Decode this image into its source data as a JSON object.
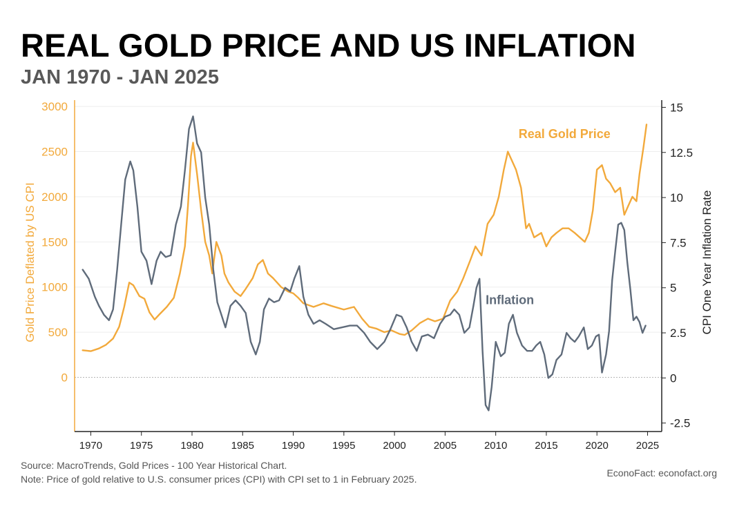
{
  "header": {
    "title": "REAL GOLD PRICE AND US INFLATION",
    "subtitle": "JAN 1970 - JAN 2025"
  },
  "footer": {
    "source": "Source: MacroTrends, Gold Prices - 100 Year Historical Chart.",
    "note": "Note: Price of gold relative to U.S. consumer prices (CPI) with CPI set to 1 in February 2025.",
    "brand": "EconoFact:   econofact.org"
  },
  "chart_data": {
    "type": "line",
    "title": "REAL GOLD PRICE AND US INFLATION",
    "subtitle": "JAN 1970 - JAN 2025",
    "x_ticks": [
      1970,
      1975,
      1980,
      1985,
      1990,
      1995,
      2000,
      2005,
      2010,
      2015,
      2020,
      2025
    ],
    "x_tick_labels": [
      "1970",
      "1975",
      "1980",
      "1985",
      "1990",
      "1995",
      "2000",
      "2005",
      "2010",
      "2015",
      "2020",
      "2025"
    ],
    "xlim": [
      1968.4,
      2026.4
    ],
    "y_left": {
      "label": "Gold Price Deflated by US CPI",
      "ticks": [
        0,
        500,
        1000,
        1500,
        2000,
        2500,
        3000
      ],
      "tick_labels": [
        "0",
        "500",
        "1000",
        "1500",
        "2000",
        "2500",
        "3000"
      ],
      "lim": [
        -600,
        3070
      ],
      "color": "#F2A93B"
    },
    "y_right": {
      "label": "CPI One Year Inflation Rate",
      "ticks": [
        -2.5,
        0,
        2.5,
        5,
        7.5,
        10,
        12.5,
        15
      ],
      "tick_labels": [
        "-2.5",
        "0",
        "2.5",
        "5",
        "7.5",
        "10",
        "12.5",
        "15"
      ],
      "lim": [
        -2.97,
        15.4
      ],
      "color": "#5F6B7A"
    },
    "zero_line": true,
    "series": [
      {
        "name": "Real Gold Price",
        "axis": "left",
        "color": "#F2A93B",
        "x": [
          1969.2,
          1970.0,
          1970.8,
          1971.5,
          1972.2,
          1972.8,
          1973.3,
          1973.8,
          1974.2,
          1974.8,
          1975.3,
          1975.8,
          1976.3,
          1976.8,
          1977.5,
          1978.2,
          1978.8,
          1979.3,
          1979.6,
          1979.9,
          1980.1,
          1980.5,
          1980.9,
          1981.3,
          1981.7,
          1982.0,
          1982.4,
          1982.9,
          1983.2,
          1983.6,
          1984.2,
          1984.8,
          1985.3,
          1986.0,
          1986.5,
          1987.0,
          1987.5,
          1988.0,
          1988.8,
          1989.5,
          1990.0,
          1990.5,
          1991.0,
          1992.0,
          1993.0,
          1993.8,
          1995.0,
          1996.0,
          1996.8,
          1997.5,
          1998.2,
          1999.0,
          1999.7,
          2000.5,
          2001.0,
          2001.7,
          2002.5,
          2003.3,
          2004.0,
          2004.8,
          2005.5,
          2006.2,
          2006.8,
          2007.5,
          2008.0,
          2008.6,
          2009.2,
          2009.8,
          2010.3,
          2010.8,
          2011.2,
          2011.6,
          2012.0,
          2012.5,
          2013.0,
          2013.3,
          2013.8,
          2014.5,
          2015.0,
          2015.5,
          2016.0,
          2016.6,
          2017.2,
          2017.8,
          2018.3,
          2018.8,
          2019.2,
          2019.6,
          2020.0,
          2020.5,
          2020.9,
          2021.3,
          2021.8,
          2022.3,
          2022.7,
          2023.1,
          2023.5,
          2023.9,
          2024.2,
          2024.6,
          2024.9
        ],
        "y": [
          300,
          290,
          320,
          360,
          430,
          560,
          780,
          1050,
          1020,
          900,
          870,
          720,
          640,
          700,
          780,
          880,
          1150,
          1450,
          1900,
          2450,
          2600,
          2250,
          1850,
          1500,
          1350,
          1150,
          1500,
          1350,
          1150,
          1050,
          950,
          900,
          980,
          1100,
          1250,
          1300,
          1150,
          1100,
          1000,
          950,
          930,
          880,
          820,
          780,
          820,
          790,
          750,
          780,
          650,
          560,
          540,
          500,
          520,
          480,
          470,
          520,
          600,
          650,
          620,
          650,
          850,
          950,
          1100,
          1300,
          1450,
          1350,
          1700,
          1800,
          2000,
          2300,
          2500,
          2400,
          2300,
          2100,
          1650,
          1700,
          1550,
          1600,
          1450,
          1550,
          1600,
          1650,
          1650,
          1600,
          1550,
          1500,
          1600,
          1850,
          2300,
          2350,
          2200,
          2150,
          2050,
          2100,
          1800,
          1900,
          2000,
          1950,
          2250,
          2550,
          2800
        ]
      },
      {
        "name": "Inflation",
        "axis": "right",
        "color": "#5F6B7A",
        "x": [
          1969.2,
          1969.8,
          1970.4,
          1970.8,
          1971.3,
          1971.8,
          1972.2,
          1972.6,
          1973.0,
          1973.4,
          1973.9,
          1974.2,
          1974.6,
          1975.0,
          1975.5,
          1976.0,
          1976.5,
          1976.9,
          1977.4,
          1977.9,
          1978.4,
          1978.9,
          1979.3,
          1979.7,
          1980.1,
          1980.5,
          1980.9,
          1981.3,
          1981.7,
          1982.1,
          1982.5,
          1982.9,
          1983.3,
          1983.8,
          1984.3,
          1984.8,
          1985.3,
          1985.8,
          1986.3,
          1986.7,
          1987.1,
          1987.6,
          1988.1,
          1988.6,
          1989.2,
          1989.7,
          1990.1,
          1990.6,
          1991.0,
          1991.5,
          1992.0,
          1992.6,
          1993.2,
          1994.0,
          1994.8,
          1995.6,
          1996.3,
          1997.0,
          1997.6,
          1998.3,
          1999.0,
          1999.6,
          2000.2,
          2000.7,
          2001.2,
          2001.7,
          2002.2,
          2002.7,
          2003.3,
          2003.9,
          2004.5,
          2005.0,
          2005.5,
          2005.9,
          2006.4,
          2006.9,
          2007.4,
          2007.8,
          2008.1,
          2008.4,
          2008.7,
          2009.0,
          2009.3,
          2009.6,
          2010.0,
          2010.5,
          2010.9,
          2011.3,
          2011.7,
          2012.1,
          2012.6,
          2013.1,
          2013.6,
          2014.0,
          2014.4,
          2014.8,
          2015.2,
          2015.6,
          2016.0,
          2016.5,
          2017.0,
          2017.4,
          2017.8,
          2018.2,
          2018.7,
          2019.1,
          2019.5,
          2019.9,
          2020.2,
          2020.5,
          2020.9,
          2021.2,
          2021.5,
          2021.8,
          2022.1,
          2022.4,
          2022.7,
          2023.0,
          2023.3,
          2023.6,
          2023.9,
          2024.2,
          2024.5,
          2024.8
        ],
        "y": [
          6.0,
          5.5,
          4.5,
          4.0,
          3.5,
          3.2,
          3.8,
          6.0,
          8.5,
          11.0,
          12.0,
          11.5,
          9.5,
          7.0,
          6.5,
          5.2,
          6.5,
          7.0,
          6.7,
          6.8,
          8.5,
          9.5,
          11.5,
          13.8,
          14.5,
          13.0,
          12.5,
          10.0,
          8.5,
          6.0,
          4.2,
          3.5,
          2.8,
          4.0,
          4.3,
          4.0,
          3.6,
          2.0,
          1.3,
          2.0,
          3.8,
          4.4,
          4.2,
          4.3,
          5.0,
          4.8,
          5.5,
          6.2,
          4.5,
          3.5,
          3.0,
          3.2,
          3.0,
          2.7,
          2.8,
          2.9,
          2.9,
          2.5,
          2.0,
          1.6,
          2.0,
          2.7,
          3.5,
          3.4,
          2.8,
          2.0,
          1.5,
          2.3,
          2.4,
          2.2,
          3.0,
          3.4,
          3.5,
          3.8,
          3.5,
          2.5,
          2.8,
          4.0,
          5.0,
          5.5,
          1.5,
          -1.5,
          -1.8,
          -0.5,
          2.0,
          1.2,
          1.4,
          3.0,
          3.5,
          2.5,
          1.8,
          1.5,
          1.5,
          1.8,
          2.0,
          1.3,
          0.0,
          0.2,
          1.0,
          1.3,
          2.5,
          2.2,
          2.0,
          2.3,
          2.8,
          1.6,
          1.8,
          2.3,
          2.4,
          0.3,
          1.3,
          2.6,
          5.4,
          7.0,
          8.5,
          8.6,
          8.2,
          6.4,
          4.9,
          3.2,
          3.4,
          3.1,
          2.5,
          2.9
        ]
      }
    ],
    "annotations": [
      {
        "text": "Real Gold Price",
        "series": "Real Gold Price"
      },
      {
        "text": "Inflation",
        "series": "Inflation"
      }
    ]
  }
}
